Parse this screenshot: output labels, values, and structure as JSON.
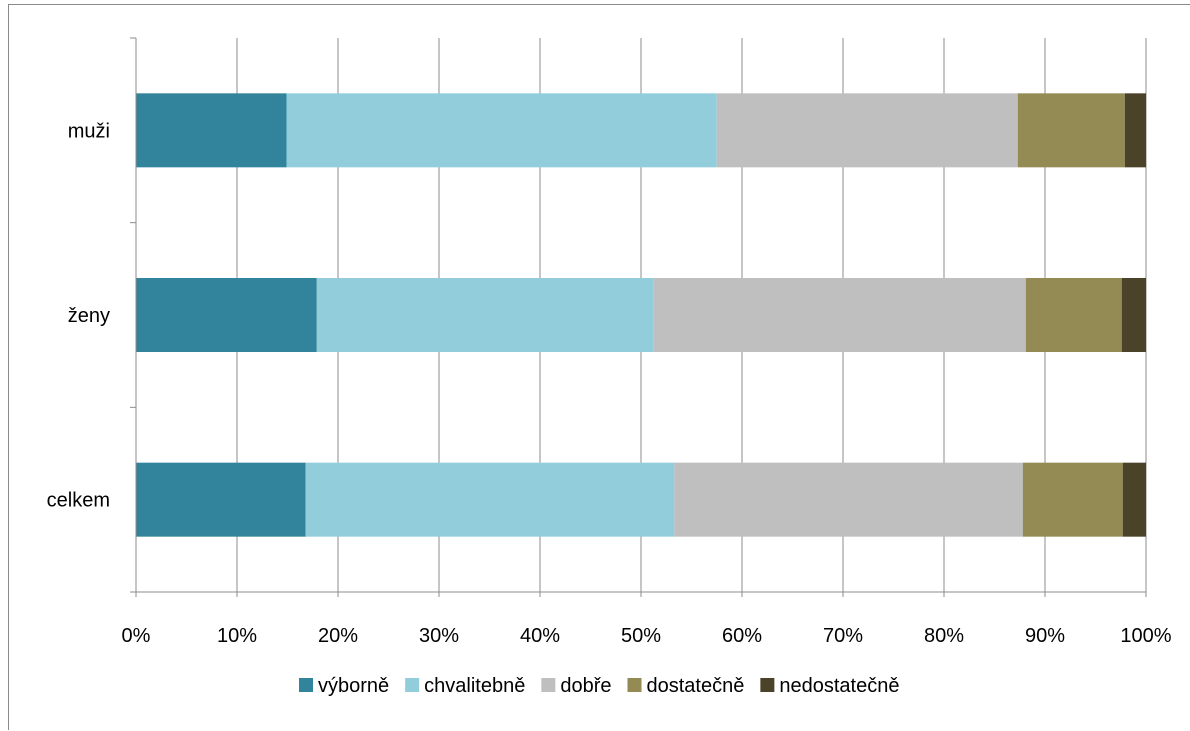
{
  "chart_data": {
    "type": "bar",
    "orientation": "horizontal",
    "stacked": "percent",
    "categories": [
      "muži",
      "ženy",
      "celkem"
    ],
    "series": [
      {
        "name": "výborně",
        "color": "#31849b",
        "values": [
          14.9,
          17.9,
          16.8
        ]
      },
      {
        "name": "chvalitebně",
        "color": "#92cddc",
        "values": [
          42.6,
          33.3,
          36.5
        ]
      },
      {
        "name": "dobře",
        "color": "#bfbfbf",
        "values": [
          29.8,
          36.9,
          34.5
        ]
      },
      {
        "name": "dostatečně",
        "color": "#948a54",
        "values": [
          10.6,
          9.5,
          9.9
        ]
      },
      {
        "name": "nedostatečně",
        "color": "#4a4229",
        "values": [
          2.1,
          2.4,
          2.3
        ]
      }
    ],
    "xlim": [
      0,
      100
    ],
    "x_ticks": [
      "0%",
      "10%",
      "20%",
      "30%",
      "40%",
      "50%",
      "60%",
      "70%",
      "80%",
      "90%",
      "100%"
    ],
    "grid": true,
    "legend_position": "bottom"
  }
}
